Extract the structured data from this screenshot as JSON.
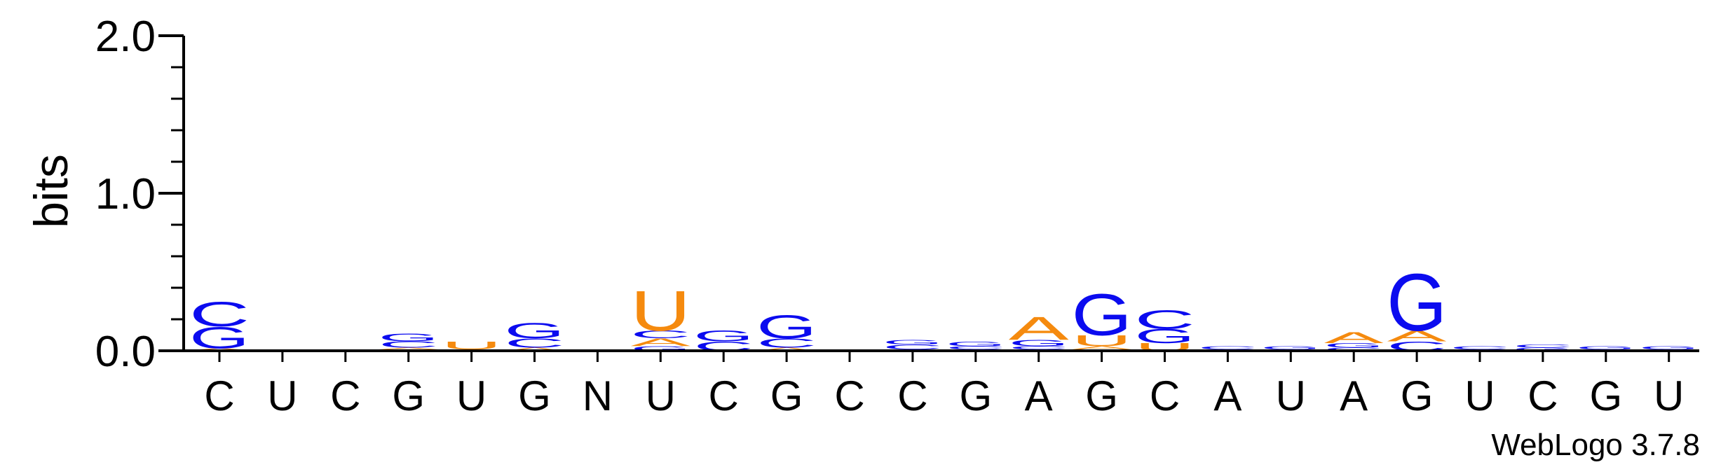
{
  "colors": {
    "A": "#f58a0e",
    "C": "#0b0bef",
    "G": "#0b0bef",
    "U": "#f58a0e",
    "axis": "#000000"
  },
  "chart_data": {
    "type": "sequence-logo",
    "ylabel": "bits",
    "ylim": [
      0,
      2.0
    ],
    "yticks": [
      {
        "value": 0.0,
        "label": "0.0"
      },
      {
        "value": 1.0,
        "label": "1.0"
      },
      {
        "value": 2.0,
        "label": "2.0"
      }
    ],
    "ytick_minor_step": 0.2,
    "positions": [
      "C",
      "U",
      "C",
      "G",
      "U",
      "G",
      "N",
      "U",
      "C",
      "G",
      "C",
      "C",
      "G",
      "A",
      "G",
      "C",
      "A",
      "U",
      "A",
      "G",
      "U",
      "C",
      "G",
      "U"
    ],
    "stacks": [
      [
        {
          "letter": "U",
          "bits": 0.005
        },
        {
          "letter": "A",
          "bits": 0.01
        },
        {
          "letter": "G",
          "bits": 0.14
        },
        {
          "letter": "C",
          "bits": 0.16
        }
      ],
      [
        {
          "letter": "C",
          "bits": 0.01
        }
      ],
      [
        {
          "letter": "U",
          "bits": 0.01
        }
      ],
      [
        {
          "letter": "U",
          "bits": 0.01
        },
        {
          "letter": "A",
          "bits": 0.01
        },
        {
          "letter": "C",
          "bits": 0.04
        },
        {
          "letter": "G",
          "bits": 0.05
        }
      ],
      [
        {
          "letter": "A",
          "bits": 0.01
        },
        {
          "letter": "U",
          "bits": 0.05
        }
      ],
      [
        {
          "letter": "A",
          "bits": 0.02
        },
        {
          "letter": "C",
          "bits": 0.06
        },
        {
          "letter": "G",
          "bits": 0.1
        }
      ],
      [],
      [
        {
          "letter": "G",
          "bits": 0.03
        },
        {
          "letter": "A",
          "bits": 0.05
        },
        {
          "letter": "C",
          "bits": 0.05
        },
        {
          "letter": "U",
          "bits": 0.26
        }
      ],
      [
        {
          "letter": "C",
          "bits": 0.06
        },
        {
          "letter": "G",
          "bits": 0.07
        }
      ],
      [
        {
          "letter": "A",
          "bits": 0.02
        },
        {
          "letter": "C",
          "bits": 0.06
        },
        {
          "letter": "G",
          "bits": 0.15
        }
      ],
      [],
      [
        {
          "letter": "A",
          "bits": 0.01
        },
        {
          "letter": "C",
          "bits": 0.03
        },
        {
          "letter": "G",
          "bits": 0.03
        }
      ],
      [
        {
          "letter": "A",
          "bits": 0.01
        },
        {
          "letter": "C",
          "bits": 0.02
        },
        {
          "letter": "G",
          "bits": 0.03
        }
      ],
      [
        {
          "letter": "U",
          "bits": 0.01
        },
        {
          "letter": "C",
          "bits": 0.02
        },
        {
          "letter": "G",
          "bits": 0.04
        },
        {
          "letter": "A",
          "bits": 0.15
        }
      ],
      [
        {
          "letter": "C",
          "bits": 0.01
        },
        {
          "letter": "A",
          "bits": 0.02
        },
        {
          "letter": "U",
          "bits": 0.07
        },
        {
          "letter": "G",
          "bits": 0.27
        }
      ],
      [
        {
          "letter": "U",
          "bits": 0.05
        },
        {
          "letter": "G",
          "bits": 0.09
        },
        {
          "letter": "C",
          "bits": 0.12
        }
      ],
      [
        {
          "letter": "U",
          "bits": 0.01
        },
        {
          "letter": "C",
          "bits": 0.02
        }
      ],
      [
        {
          "letter": "C",
          "bits": 0.01
        },
        {
          "letter": "G",
          "bits": 0.02
        }
      ],
      [
        {
          "letter": "C",
          "bits": 0.02
        },
        {
          "letter": "G",
          "bits": 0.03
        },
        {
          "letter": "A",
          "bits": 0.07
        }
      ],
      [
        {
          "letter": "C",
          "bits": 0.06
        },
        {
          "letter": "A",
          "bits": 0.07
        },
        {
          "letter": "G",
          "bits": 0.37
        }
      ],
      [
        {
          "letter": "G",
          "bits": 0.01
        },
        {
          "letter": "C",
          "bits": 0.02
        }
      ],
      [
        {
          "letter": "G",
          "bits": 0.02
        },
        {
          "letter": "C",
          "bits": 0.02
        }
      ],
      [
        {
          "letter": "C",
          "bits": 0.01
        },
        {
          "letter": "G",
          "bits": 0.02
        }
      ],
      [
        {
          "letter": "C",
          "bits": 0.01
        },
        {
          "letter": "G",
          "bits": 0.02
        }
      ]
    ]
  },
  "footer": {
    "credit": "WebLogo 3.7.8"
  }
}
